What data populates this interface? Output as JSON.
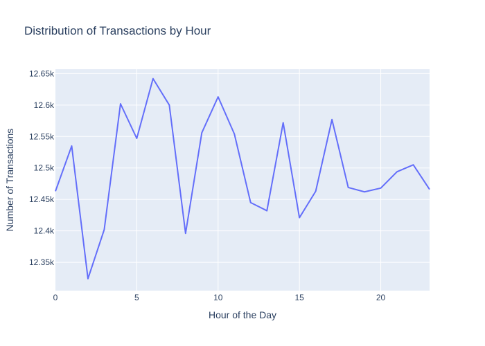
{
  "chart_data": {
    "type": "line",
    "title": "Distribution of Transactions by Hour",
    "xlabel": "Hour of the Day",
    "ylabel": "Number of Transactions",
    "xlim": [
      0,
      23
    ],
    "ylim": [
      12305,
      12657
    ],
    "x_ticks": [
      0,
      5,
      10,
      15,
      20
    ],
    "y_ticks": [
      12350,
      12400,
      12450,
      12500,
      12550,
      12600,
      12650
    ],
    "y_tick_labels": [
      "12.35k",
      "12.4k",
      "12.45k",
      "12.5k",
      "12.55k",
      "12.6k",
      "12.65k"
    ],
    "grid": true,
    "legend": "none",
    "series": [
      {
        "x": [
          0,
          1,
          2,
          3,
          4,
          5,
          6,
          7,
          8,
          9,
          10,
          11,
          12,
          13,
          14,
          15,
          16,
          17,
          18,
          19,
          20,
          21,
          22,
          23
        ],
        "values": [
          12463,
          12535,
          12324,
          12402,
          12602,
          12547,
          12642,
          12600,
          12396,
          12556,
          12613,
          12554,
          12445,
          12432,
          12572,
          12421,
          12463,
          12577,
          12469,
          12462,
          12468,
          12494,
          12505,
          12466
        ],
        "color": "#636efa"
      }
    ],
    "colors": {
      "plot_bg": "#e5ecf6",
      "grid": "#ffffff",
      "text": "#2a3f5f"
    }
  }
}
